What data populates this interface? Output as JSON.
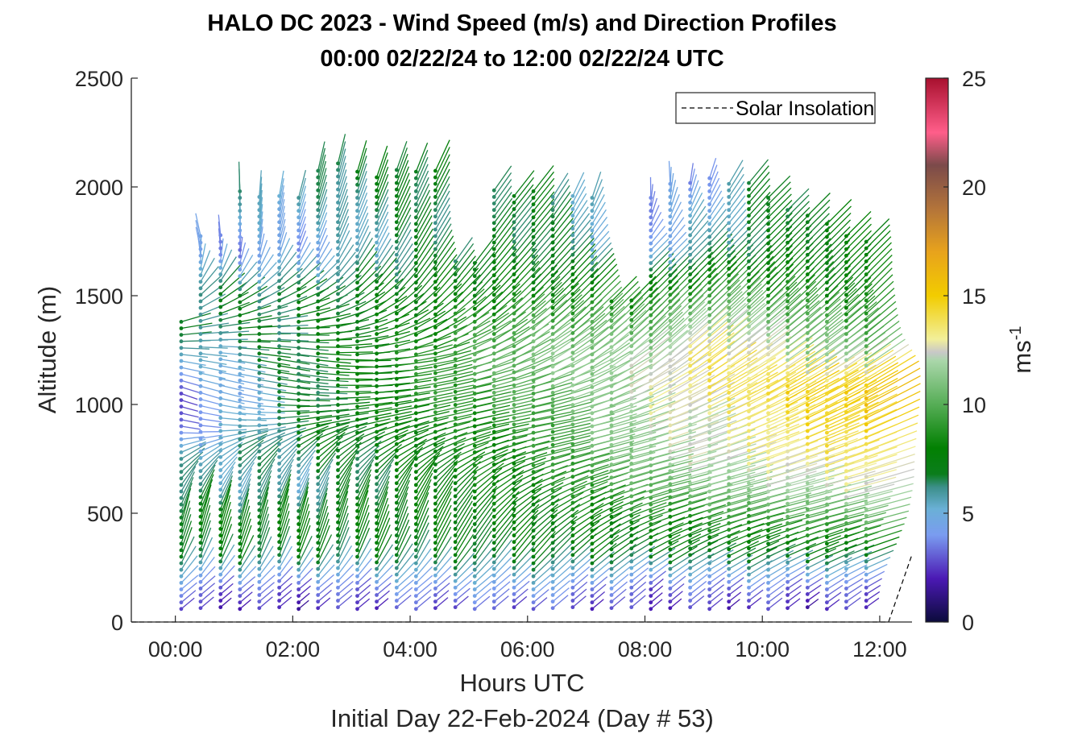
{
  "chart_data": {
    "type": "barb-profile",
    "title": "HALO DC 2023 - Wind Speed (m/s) and Direction Profiles",
    "subtitle": "00:00 02/22/24 to 12:00 02/22/24  UTC",
    "xlabel": "Hours UTC",
    "xlabel2": "Initial Day 22-Feb-2024 (Day # 53)",
    "ylabel": "Altitude (m)",
    "xlim": [
      -0.75,
      12.55
    ],
    "ylim": [
      0,
      2500
    ],
    "x_ticks": [
      {
        "value": 0,
        "label": "00:00"
      },
      {
        "value": 2,
        "label": "02:00"
      },
      {
        "value": 4,
        "label": "04:00"
      },
      {
        "value": 6,
        "label": "06:00"
      },
      {
        "value": 8,
        "label": "08:00"
      },
      {
        "value": 10,
        "label": "10:00"
      },
      {
        "value": 12,
        "label": "12:00"
      }
    ],
    "y_ticks": [
      {
        "value": 0,
        "label": "0"
      },
      {
        "value": 500,
        "label": "500"
      },
      {
        "value": 1000,
        "label": "1000"
      },
      {
        "value": 1500,
        "label": "1500"
      },
      {
        "value": 2000,
        "label": "2000"
      },
      {
        "value": 2500,
        "label": "2500"
      }
    ],
    "legend": {
      "label": "Solar Insolation",
      "position": "top-right",
      "line_style": "dashed"
    },
    "colorbar": {
      "label": "ms",
      "label_exp": "-1",
      "range": [
        0,
        25
      ],
      "ticks": [
        {
          "value": 0,
          "label": "0"
        },
        {
          "value": 5,
          "label": "5"
        },
        {
          "value": 10,
          "label": "10"
        },
        {
          "value": 15,
          "label": "15"
        },
        {
          "value": 20,
          "label": "20"
        },
        {
          "value": 25,
          "label": "25"
        }
      ],
      "stops": [
        {
          "v": 0,
          "c": "#0b0b3b"
        },
        {
          "v": 2,
          "c": "#4b19b4"
        },
        {
          "v": 4,
          "c": "#7a9cf0"
        },
        {
          "v": 5.2,
          "c": "#6ab0d6"
        },
        {
          "v": 6.2,
          "c": "#3c8f8a"
        },
        {
          "v": 6.8,
          "c": "#0b7d1c"
        },
        {
          "v": 8,
          "c": "#028002"
        },
        {
          "v": 10,
          "c": "#56ad56"
        },
        {
          "v": 12,
          "c": "#a9d6a9"
        },
        {
          "v": 12.4,
          "c": "#c8c8c8"
        },
        {
          "v": 13,
          "c": "#f2ef9a"
        },
        {
          "v": 15,
          "c": "#f2cc00"
        },
        {
          "v": 17,
          "c": "#e8a31c"
        },
        {
          "v": 19,
          "c": "#b3743a"
        },
        {
          "v": 21,
          "c": "#7b4a4a"
        },
        {
          "v": 22.5,
          "c": "#ff5e8a"
        },
        {
          "v": 25,
          "c": "#a8102e"
        }
      ]
    },
    "profile_times": [
      0.1,
      0.43,
      0.77,
      1.1,
      1.43,
      1.77,
      2.1,
      2.43,
      2.77,
      3.1,
      3.43,
      3.77,
      4.1,
      4.43,
      4.77,
      5.1,
      5.43,
      5.77,
      6.1,
      6.43,
      6.77,
      7.1,
      7.43,
      7.77,
      8.1,
      8.43,
      8.77,
      9.1,
      9.43,
      9.77,
      10.1,
      10.43,
      10.77,
      11.1,
      11.43,
      11.77
    ],
    "profile_tops_m": [
      1400,
      1780,
      1780,
      2000,
      1960,
      1960,
      1960,
      2080,
      2130,
      2090,
      2070,
      2090,
      2070,
      2090,
      1670,
      1670,
      2000,
      1970,
      2000,
      1960,
      1960,
      1950,
      1500,
      1500,
      1960,
      2040,
      2040,
      2040,
      2030,
      2040,
      1950,
      1910,
      1890,
      1850,
      1800,
      1760
    ],
    "altitude_step_m": 30,
    "speed_profile": {
      "times": [
        0,
        2,
        4,
        6,
        8,
        9,
        10,
        11,
        12
      ],
      "surface_speeds": [
        1.5,
        1.5,
        2,
        2,
        2,
        1.5,
        1.5,
        1.5,
        2
      ],
      "altitude_levels_m": [
        0,
        150,
        300,
        450,
        600,
        750,
        900,
        1050,
        1200,
        1350,
        1500,
        1700,
        2100
      ],
      "speeds": [
        [
          1.5,
          3.5,
          7.0,
          7.5,
          6.0,
          5.5,
          3.5,
          3.0,
          4.5,
          6.5,
          6.5,
          3.5,
          6.5
        ],
        [
          1.5,
          3.0,
          7.0,
          7.5,
          5.5,
          6.5,
          7.0,
          6.5,
          7.0,
          6.8,
          6.8,
          4.0,
          6.8
        ],
        [
          2.0,
          4.0,
          7.0,
          7.5,
          7.5,
          7.5,
          8.0,
          8.5,
          8.5,
          8.0,
          7.5,
          6.5,
          7.2
        ],
        [
          2.0,
          4.5,
          7.2,
          7.5,
          8.0,
          8.5,
          9.0,
          10.0,
          11.0,
          10.0,
          8.0,
          7.0,
          7.0
        ],
        [
          2.0,
          3.0,
          7.0,
          8.0,
          10.0,
          11.5,
          12.2,
          12.5,
          12.0,
          10.0,
          8.0,
          4.5,
          3.5
        ],
        [
          1.5,
          3.5,
          7.0,
          8.5,
          11.0,
          12.5,
          12.5,
          13.5,
          14.0,
          12.0,
          9.5,
          6.0,
          3.5
        ],
        [
          1.5,
          3.5,
          7.0,
          9.0,
          11.5,
          13.0,
          13.5,
          14.5,
          12.5,
          11.0,
          9.0,
          7.0,
          7.0
        ],
        [
          1.5,
          3.0,
          7.0,
          9.5,
          12.0,
          13.5,
          14.5,
          15.0,
          11.5,
          10.0,
          8.0,
          7.5,
          7.0
        ],
        [
          2.0,
          3.5,
          7.0,
          10.0,
          12.5,
          14.0,
          15.0,
          15.5,
          11.0,
          9.5,
          8.0,
          7.5,
          7.0
        ]
      ]
    },
    "direction_profile": {
      "times": [
        0,
        2,
        4,
        6,
        8,
        10,
        12
      ],
      "altitude_levels_m": [
        0,
        150,
        300,
        450,
        600,
        750,
        900,
        1050,
        1200,
        1350,
        1500,
        1700,
        2100
      ],
      "directions_deg": [
        [
          50,
          50,
          20,
          15,
          30,
          60,
          100,
          110,
          100,
          80,
          45,
          340,
          340
        ],
        [
          50,
          50,
          20,
          15,
          25,
          45,
          80,
          95,
          100,
          90,
          60,
          20,
          10
        ],
        [
          50,
          50,
          25,
          20,
          30,
          60,
          75,
          80,
          80,
          60,
          40,
          30,
          20
        ],
        [
          50,
          50,
          40,
          50,
          65,
          75,
          80,
          75,
          60,
          50,
          45,
          40,
          40
        ],
        [
          50,
          50,
          60,
          70,
          75,
          75,
          70,
          60,
          50,
          45,
          45,
          45,
          330
        ],
        [
          50,
          55,
          65,
          75,
          75,
          70,
          65,
          60,
          55,
          50,
          45,
          45,
          45
        ],
        [
          50,
          60,
          70,
          75,
          75,
          70,
          65,
          60,
          55,
          50,
          45,
          45,
          45
        ]
      ]
    },
    "insolation": {
      "x": [
        -0.75,
        12.15,
        12.55
      ],
      "y": [
        0,
        0,
        310
      ]
    }
  }
}
